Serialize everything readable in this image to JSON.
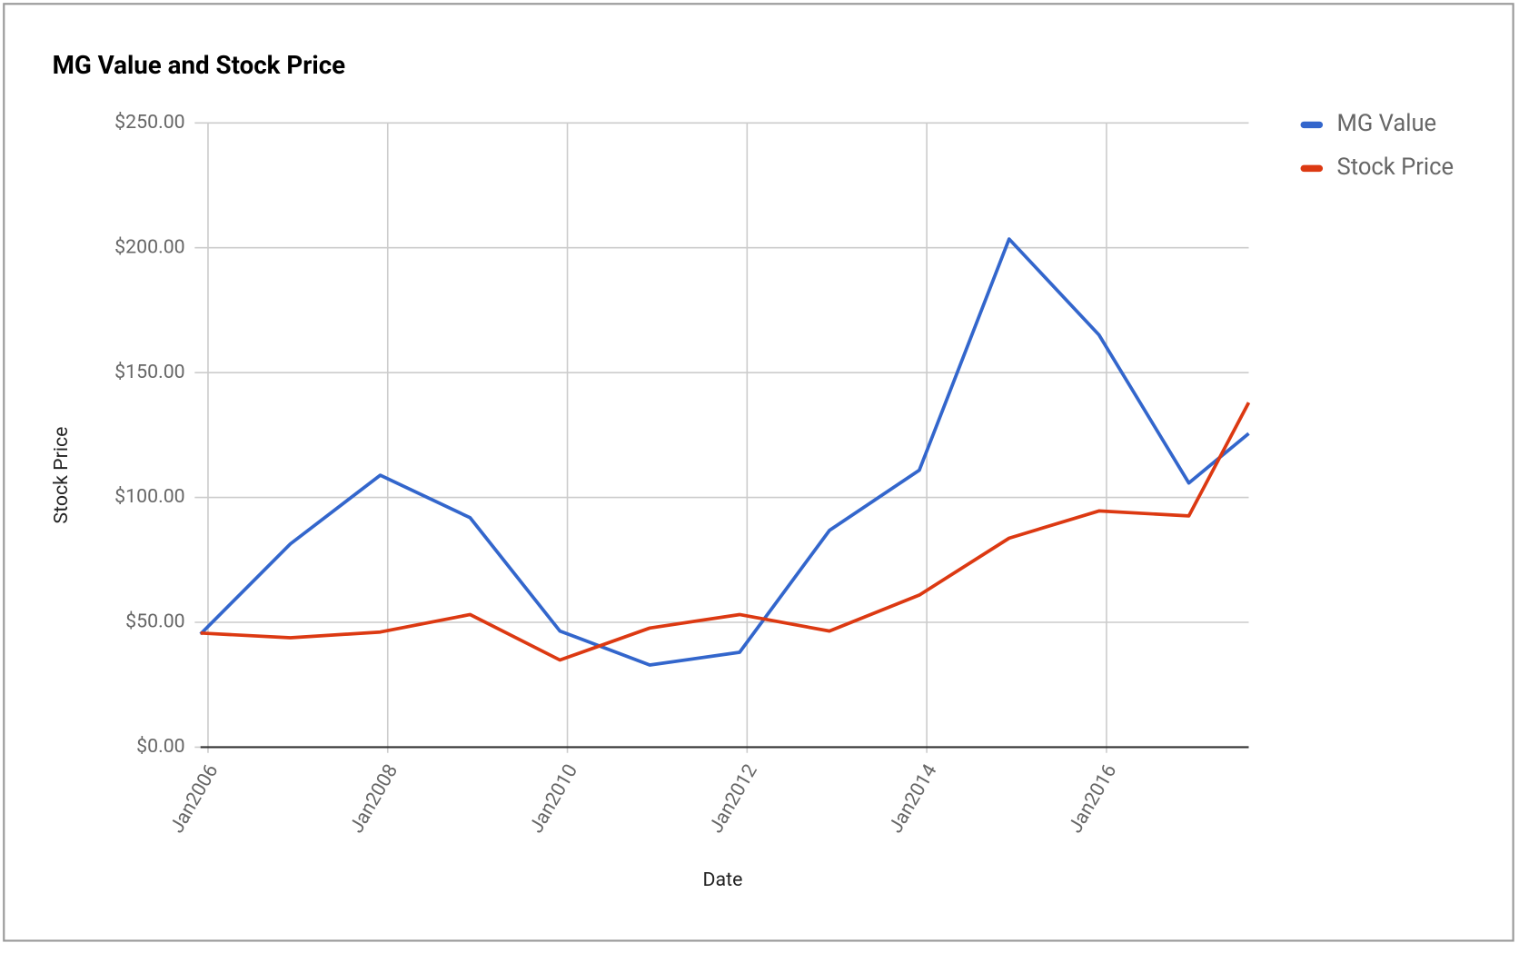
{
  "chart_data": {
    "type": "line",
    "title": "MG Value and Stock Price",
    "x_label": "Date",
    "y_label": "Stock Price",
    "x": [
      "2005-12",
      "2006-12",
      "2007-12",
      "2008-12",
      "2009-12",
      "2010-12",
      "2011-12",
      "2012-12",
      "2013-12",
      "2014-12",
      "2015-12",
      "2016-12",
      "2017-08"
    ],
    "series": [
      {
        "name": "MG Value",
        "color": "#3366cc",
        "values": [
          45.3,
          81.4,
          108.9,
          91.9,
          46.5,
          32.9,
          38.0,
          86.8,
          110.9,
          203.5,
          165.1,
          105.8,
          125.6
        ]
      },
      {
        "name": "Stock Price",
        "color": "#dc3912",
        "values": [
          45.7,
          43.8,
          46.1,
          53.1,
          34.9,
          47.7,
          53.1,
          46.5,
          60.9,
          83.7,
          94.6,
          92.6,
          138.0
        ]
      }
    ],
    "xlim": [
      "2005-12",
      "2017-08"
    ],
    "xticks": [
      {
        "value": "2006-01",
        "label": "Jan2006"
      },
      {
        "value": "2008-01",
        "label": "Jan2008"
      },
      {
        "value": "2010-01",
        "label": "Jan2010"
      },
      {
        "value": "2012-01",
        "label": "Jan2012"
      },
      {
        "value": "2014-01",
        "label": "Jan2014"
      },
      {
        "value": "2016-01",
        "label": "Jan2016"
      }
    ],
    "ylim": [
      0,
      250
    ],
    "yticks": [
      {
        "value": 0,
        "label": "$0.00"
      },
      {
        "value": 50,
        "label": "$50.00"
      },
      {
        "value": 100,
        "label": "$100.00"
      },
      {
        "value": 150,
        "label": "$150.00"
      },
      {
        "value": 200,
        "label": "$200.00"
      },
      {
        "value": 250,
        "label": "$250.00"
      }
    ],
    "grid": true,
    "legend": "right"
  }
}
